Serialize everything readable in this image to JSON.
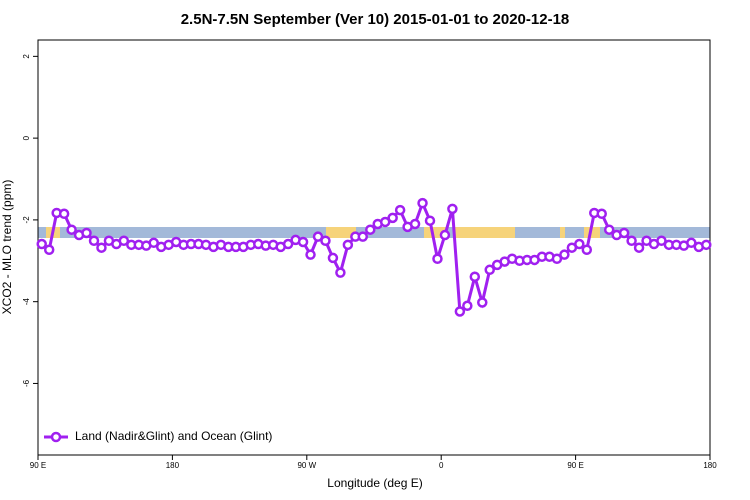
{
  "chart_data": {
    "type": "line",
    "title": "2.5N-7.5N September (Ver 10)   2015-01-01 to 2020-12-18",
    "x_label": "Longitude (deg E)",
    "y_label": "XCO2 - MLO trend (ppm)",
    "x": [
      92.5,
      97.5,
      102.5,
      107.5,
      112.5,
      117.5,
      122.5,
      127.5,
      132.5,
      137.5,
      142.5,
      147.5,
      152.5,
      157.5,
      162.5,
      167.5,
      172.5,
      177.5,
      182.5,
      187.5,
      192.5,
      197.5,
      202.5,
      207.5,
      212.5,
      217.5,
      222.5,
      227.5,
      232.5,
      237.5,
      242.5,
      247.5,
      252.5,
      257.5,
      262.5,
      267.5,
      272.5,
      277.5,
      282.5,
      287.5,
      292.5,
      297.5,
      302.5,
      307.5,
      312.5,
      317.5,
      322.5,
      327.5,
      332.5,
      337.5,
      342.5,
      347.5,
      352.5,
      357.5,
      362.5,
      367.5,
      372.5,
      377.5,
      382.5,
      387.5,
      392.5,
      397.5,
      402.5,
      407.5,
      412.5,
      417.5,
      422.5,
      427.5,
      432.5,
      437.5,
      442.5,
      447.5,
      452.5,
      457.5,
      462.5,
      467.5,
      472.5,
      477.5,
      482.5,
      487.5,
      492.5,
      497.5,
      502.5,
      507.5,
      512.5,
      517.5,
      522.5,
      527.5,
      532.5,
      537.5
    ],
    "series": [
      {
        "name": "Land (Nadir&Glint) and Ocean (Glint)",
        "color": "#a020f0",
        "values": [
          -2.59,
          -2.73,
          -1.83,
          -1.85,
          -2.24,
          -2.37,
          -2.32,
          -2.51,
          -2.68,
          -2.51,
          -2.59,
          -2.51,
          -2.61,
          -2.61,
          -2.63,
          -2.56,
          -2.66,
          -2.61,
          -2.54,
          -2.61,
          -2.59,
          -2.59,
          -2.61,
          -2.66,
          -2.61,
          -2.66,
          -2.66,
          -2.66,
          -2.61,
          -2.59,
          -2.63,
          -2.61,
          -2.66,
          -2.59,
          -2.49,
          -2.54,
          -2.85,
          -2.41,
          -2.51,
          -2.93,
          -3.29,
          -2.61,
          -2.41,
          -2.41,
          -2.24,
          -2.1,
          -2.05,
          -1.95,
          -1.76,
          -2.17,
          -2.1,
          -1.59,
          -2.02,
          -2.95,
          -2.37,
          -1.73,
          -4.24,
          -4.1,
          -3.39,
          -4.02,
          -3.22,
          -3.1,
          -3.02,
          -2.95,
          -3.0,
          -2.98,
          -2.98,
          -2.9,
          -2.9,
          -2.95,
          -2.85,
          -2.68,
          -2.59,
          -2.73,
          -1.83,
          -1.85,
          -2.24,
          -2.37,
          -2.32,
          -2.51,
          -2.68,
          -2.51,
          -2.59,
          -2.51,
          -2.61,
          -2.61,
          -2.63,
          -2.56,
          -2.66,
          -2.61
        ]
      }
    ],
    "xlim": [
      90,
      540
    ],
    "xticks": [
      {
        "value": 90,
        "label": "90 E"
      },
      180,
      {
        "value": 270,
        "label": "90 W"
      },
      {
        "value": 360,
        "label": "0"
      },
      {
        "value": 450,
        "label": "90 E"
      },
      {
        "value": 540,
        "label": "180"
      }
    ],
    "ylim": [
      -7.75,
      2.4
    ],
    "yticks": [
      2,
      0,
      -2,
      -4,
      -6
    ],
    "legend": "bottom-left"
  }
}
